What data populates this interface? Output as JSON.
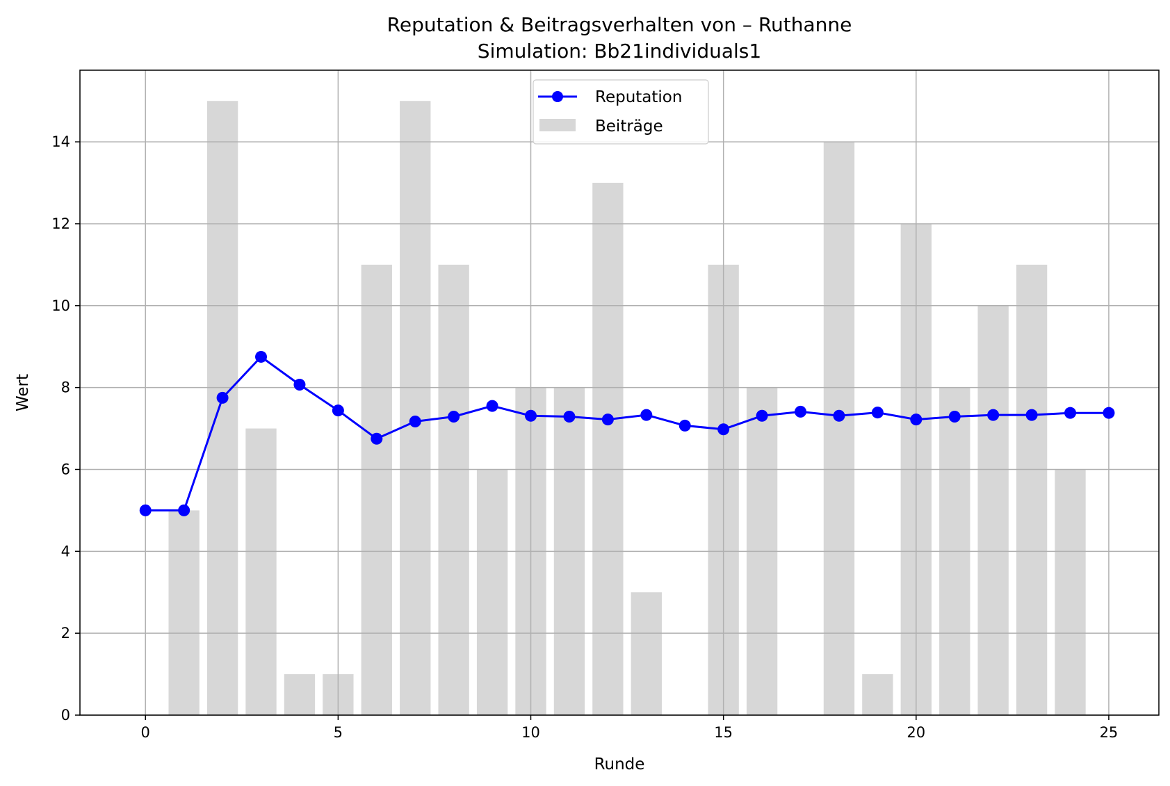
{
  "chart_data": {
    "type": "bar",
    "title": "Reputation & Beitragsverhalten von – Ruthanne",
    "subtitle": "Simulation: Bb21individuals1",
    "xlabel": "Runde",
    "ylabel": "Wert",
    "xlim": [
      -1.7,
      26.3
    ],
    "ylim": [
      0,
      15.75
    ],
    "xticks": [
      0,
      5,
      10,
      15,
      20,
      25
    ],
    "yticks": [
      0,
      2,
      4,
      6,
      8,
      10,
      12,
      14
    ],
    "grid": true,
    "legend_position": "top-center",
    "series": [
      {
        "name": "Reputation",
        "type": "line",
        "color": "#0000ff",
        "marker": "circle",
        "x": [
          0,
          1,
          2,
          3,
          4,
          5,
          6,
          7,
          8,
          9,
          10,
          11,
          12,
          13,
          14,
          15,
          16,
          17,
          18,
          19,
          20,
          21,
          22,
          23,
          24,
          25
        ],
        "values": [
          5.0,
          5.0,
          7.75,
          8.75,
          8.07,
          7.44,
          6.75,
          7.17,
          7.29,
          7.55,
          7.31,
          7.29,
          7.22,
          7.33,
          7.07,
          6.98,
          7.31,
          7.41,
          7.31,
          7.39,
          7.22,
          7.29,
          7.33,
          7.33,
          7.38,
          7.38
        ]
      },
      {
        "name": "Beiträge",
        "type": "bar",
        "color": "#d3d3d3",
        "x": [
          1,
          2,
          3,
          4,
          5,
          6,
          7,
          8,
          9,
          10,
          11,
          12,
          13,
          14,
          15,
          16,
          17,
          18,
          19,
          20,
          21,
          22,
          23,
          24
        ],
        "values": [
          5,
          15,
          7,
          1,
          1,
          11,
          15,
          11,
          6,
          8,
          8,
          13,
          3,
          0,
          11,
          8,
          0,
          14,
          1,
          12,
          8,
          10,
          11,
          6
        ]
      }
    ]
  }
}
